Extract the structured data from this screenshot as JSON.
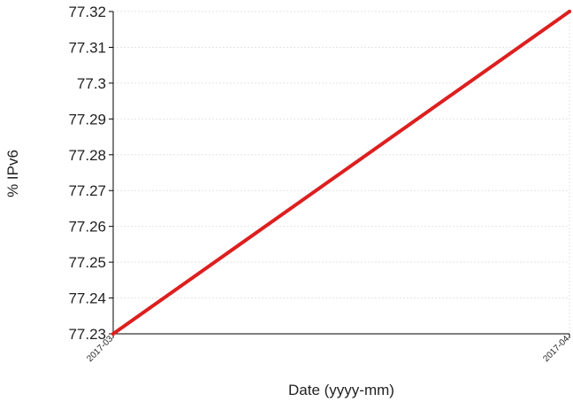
{
  "chart_data": {
    "type": "line",
    "title": "",
    "xlabel": "Date (yyyy-mm)",
    "ylabel": "% IPv6",
    "x": [
      "2017-03",
      "2017-04"
    ],
    "series": [
      {
        "values": [
          77.23,
          77.32
        ],
        "color": "#dd1f1f"
      }
    ],
    "ylim": [
      77.23,
      77.32
    ],
    "yticks": [
      77.23,
      77.24,
      77.25,
      77.26,
      77.27,
      77.28,
      77.29,
      77.3,
      77.31,
      77.32
    ],
    "ytick_labels": [
      "77.23",
      "77.24",
      "77.25",
      "77.26",
      "77.27",
      "77.28",
      "77.29",
      "77.3",
      "77.31",
      "77.32"
    ],
    "grid": true,
    "grid_color": "#e4e4e4",
    "axis_color": "#000000"
  }
}
